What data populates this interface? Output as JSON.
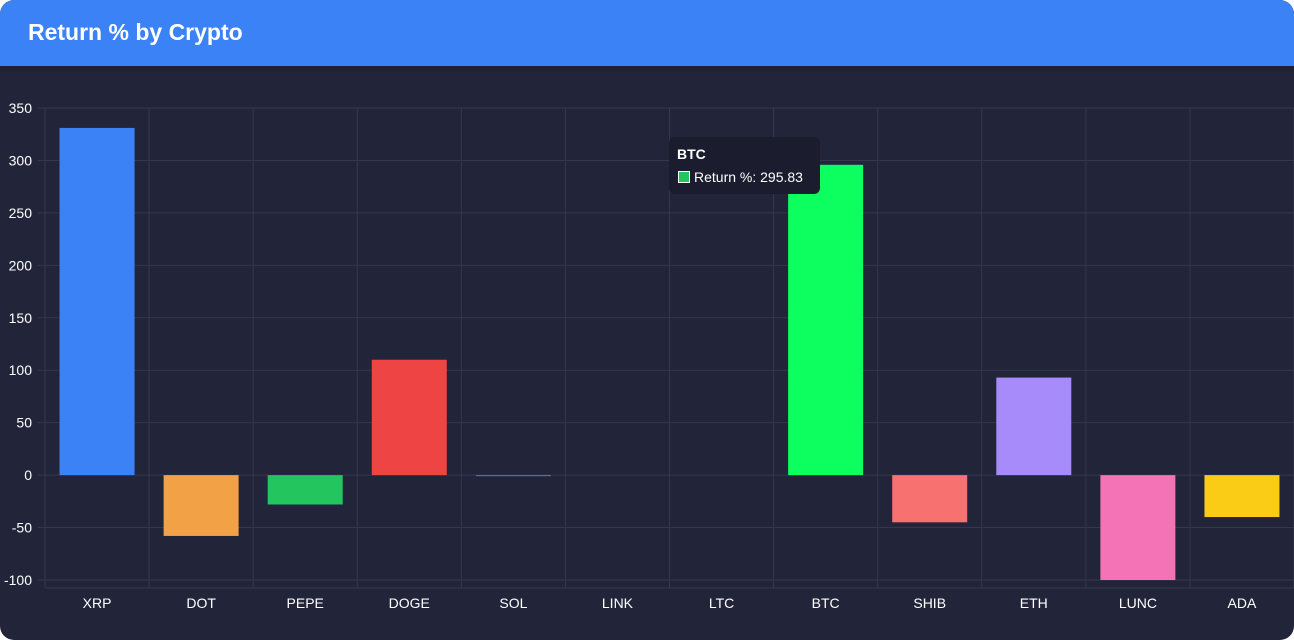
{
  "header": {
    "title": "Return % by Crypto"
  },
  "colors": {
    "header_bg": "#3b82f6",
    "card_bg": "#22243a",
    "grid": "#34374f",
    "text": "#ffffff"
  },
  "chart_data": {
    "type": "bar",
    "title": "Return % by Crypto",
    "categories": [
      "XRP",
      "DOT",
      "PEPE",
      "DOGE",
      "SOL",
      "LINK",
      "LTC",
      "BTC",
      "SHIB",
      "ETH",
      "LUNC",
      "ADA"
    ],
    "series": [
      {
        "name": "Return %",
        "values": [
          331,
          -58,
          -28,
          110,
          -1,
          0,
          0,
          295.83,
          -45,
          93,
          -100,
          -40
        ],
        "colors": [
          "#3b82f6",
          "#f2a146",
          "#22c55e",
          "#ef4444",
          "#6366f1",
          "#14b8a6",
          "#84cc16",
          "#0dff5f",
          "#f87171",
          "#a78bfa",
          "#f472b6",
          "#facc15"
        ]
      }
    ],
    "ylim": [
      -100,
      350
    ],
    "yticks": [
      350,
      300,
      250,
      200,
      150,
      100,
      50,
      0,
      -50,
      -100
    ],
    "grid": true,
    "legend": "none"
  },
  "tooltip": {
    "title": "BTC",
    "label": "Return %: 295.83",
    "swatch_color": "#22c55e"
  }
}
